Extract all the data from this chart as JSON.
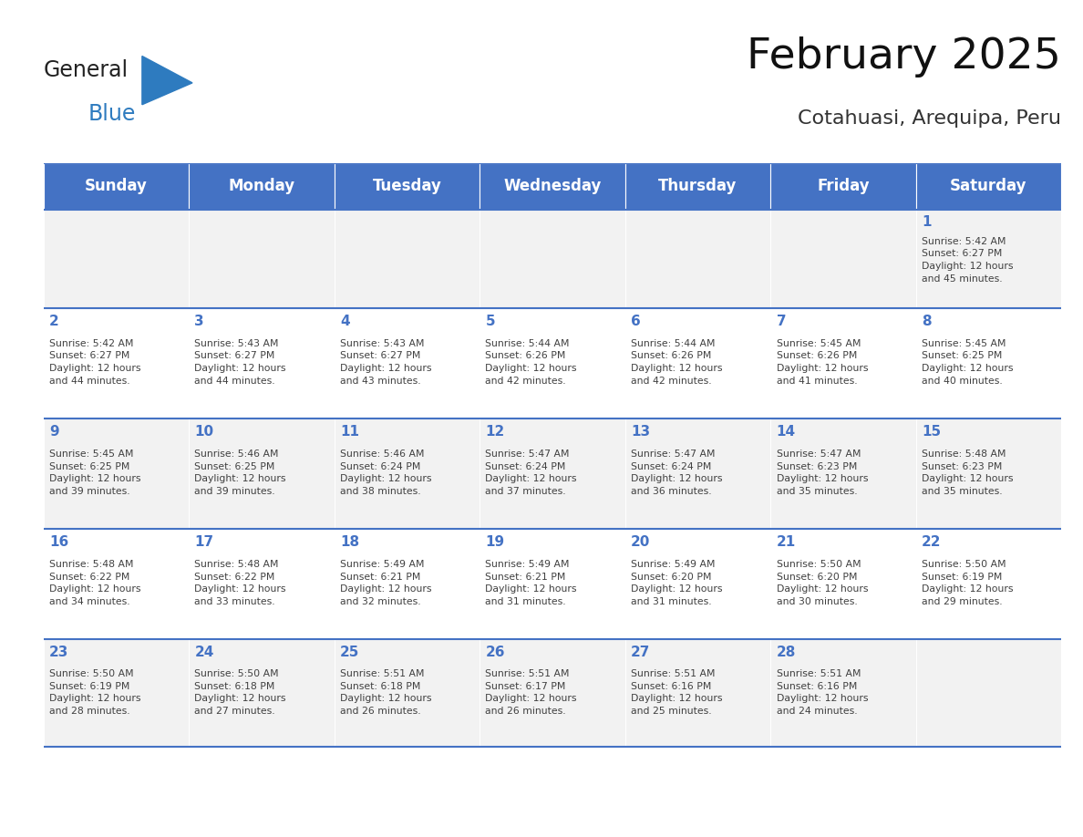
{
  "title": "February 2025",
  "subtitle": "Cotahuasi, Arequipa, Peru",
  "header_bg": "#4472C4",
  "header_text_color": "#FFFFFF",
  "cell_bg_odd": "#F2F2F2",
  "cell_bg_even": "#FFFFFF",
  "day_number_color": "#4472C4",
  "info_text_color": "#404040",
  "border_color": "#4472C4",
  "days_of_week": [
    "Sunday",
    "Monday",
    "Tuesday",
    "Wednesday",
    "Thursday",
    "Friday",
    "Saturday"
  ],
  "weeks": [
    [
      "",
      "",
      "",
      "",
      "",
      "",
      "1\nSunrise: 5:42 AM\nSunset: 6:27 PM\nDaylight: 12 hours\nand 45 minutes."
    ],
    [
      "2\nSunrise: 5:42 AM\nSunset: 6:27 PM\nDaylight: 12 hours\nand 44 minutes.",
      "3\nSunrise: 5:43 AM\nSunset: 6:27 PM\nDaylight: 12 hours\nand 44 minutes.",
      "4\nSunrise: 5:43 AM\nSunset: 6:27 PM\nDaylight: 12 hours\nand 43 minutes.",
      "5\nSunrise: 5:44 AM\nSunset: 6:26 PM\nDaylight: 12 hours\nand 42 minutes.",
      "6\nSunrise: 5:44 AM\nSunset: 6:26 PM\nDaylight: 12 hours\nand 42 minutes.",
      "7\nSunrise: 5:45 AM\nSunset: 6:26 PM\nDaylight: 12 hours\nand 41 minutes.",
      "8\nSunrise: 5:45 AM\nSunset: 6:25 PM\nDaylight: 12 hours\nand 40 minutes."
    ],
    [
      "9\nSunrise: 5:45 AM\nSunset: 6:25 PM\nDaylight: 12 hours\nand 39 minutes.",
      "10\nSunrise: 5:46 AM\nSunset: 6:25 PM\nDaylight: 12 hours\nand 39 minutes.",
      "11\nSunrise: 5:46 AM\nSunset: 6:24 PM\nDaylight: 12 hours\nand 38 minutes.",
      "12\nSunrise: 5:47 AM\nSunset: 6:24 PM\nDaylight: 12 hours\nand 37 minutes.",
      "13\nSunrise: 5:47 AM\nSunset: 6:24 PM\nDaylight: 12 hours\nand 36 minutes.",
      "14\nSunrise: 5:47 AM\nSunset: 6:23 PM\nDaylight: 12 hours\nand 35 minutes.",
      "15\nSunrise: 5:48 AM\nSunset: 6:23 PM\nDaylight: 12 hours\nand 35 minutes."
    ],
    [
      "16\nSunrise: 5:48 AM\nSunset: 6:22 PM\nDaylight: 12 hours\nand 34 minutes.",
      "17\nSunrise: 5:48 AM\nSunset: 6:22 PM\nDaylight: 12 hours\nand 33 minutes.",
      "18\nSunrise: 5:49 AM\nSunset: 6:21 PM\nDaylight: 12 hours\nand 32 minutes.",
      "19\nSunrise: 5:49 AM\nSunset: 6:21 PM\nDaylight: 12 hours\nand 31 minutes.",
      "20\nSunrise: 5:49 AM\nSunset: 6:20 PM\nDaylight: 12 hours\nand 31 minutes.",
      "21\nSunrise: 5:50 AM\nSunset: 6:20 PM\nDaylight: 12 hours\nand 30 minutes.",
      "22\nSunrise: 5:50 AM\nSunset: 6:19 PM\nDaylight: 12 hours\nand 29 minutes."
    ],
    [
      "23\nSunrise: 5:50 AM\nSunset: 6:19 PM\nDaylight: 12 hours\nand 28 minutes.",
      "24\nSunrise: 5:50 AM\nSunset: 6:18 PM\nDaylight: 12 hours\nand 27 minutes.",
      "25\nSunrise: 5:51 AM\nSunset: 6:18 PM\nDaylight: 12 hours\nand 26 minutes.",
      "26\nSunrise: 5:51 AM\nSunset: 6:17 PM\nDaylight: 12 hours\nand 26 minutes.",
      "27\nSunrise: 5:51 AM\nSunset: 6:16 PM\nDaylight: 12 hours\nand 25 minutes.",
      "28\nSunrise: 5:51 AM\nSunset: 6:16 PM\nDaylight: 12 hours\nand 24 minutes.",
      ""
    ]
  ],
  "logo_general_color": "#222222",
  "logo_blue_color": "#2E7BBF",
  "logo_triangle_color": "#2E7BBF"
}
